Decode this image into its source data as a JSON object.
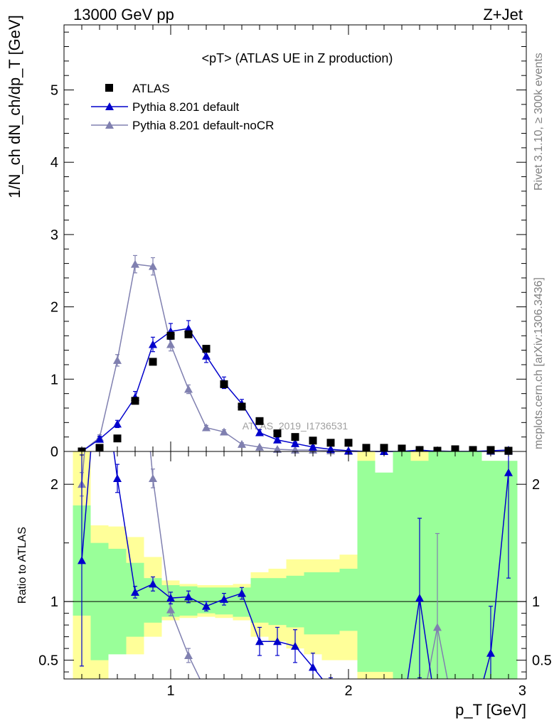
{
  "header": {
    "left": "13000 GeV pp",
    "right": "Z+Jet"
  },
  "side_text": {
    "rivet": "Rivet 3.1.10, ≥ 300k events",
    "mcplots": "mcplots.cern.ch [arXiv:1306.3436]"
  },
  "colors": {
    "atlas": "#000000",
    "default": "#0000cc",
    "nocr": "#8080b0",
    "band_green": "#99ff99",
    "band_yellow": "#ffff99"
  },
  "chart_data": {
    "type": "line",
    "title": "<pT> (ATLAS UE in Z production)",
    "watermark": "ATLAS_2019_I1736531",
    "xlabel": "p_T [GeV]",
    "ylabel": "1/N_ch dN_ch/dp_T [GeV]",
    "ratio_ylabel": "Ratio to ATLAS",
    "xlim": [
      0.4,
      3.0
    ],
    "ylim": [
      0,
      5.9
    ],
    "ratio_ylim": [
      0.34,
      2.28
    ],
    "legend_position": "top-left",
    "main_yticks": [
      0,
      1,
      2,
      3,
      4,
      5
    ],
    "main_ytick_labels": [
      "0",
      "1",
      "2",
      "3",
      "4",
      "5"
    ],
    "ratio_yticks": [
      0.5,
      1,
      2
    ],
    "ratio_ytick_labels": [
      "0.5",
      "1",
      "2"
    ],
    "xticks": [
      1,
      2,
      3
    ],
    "xtick_labels": [
      "1",
      "2",
      "3"
    ],
    "legend": [
      "ATLAS",
      "Pythia 8.201 default",
      "Pythia 8.201 default-noCR"
    ],
    "x": [
      0.5,
      0.6,
      0.7,
      0.8,
      0.9,
      1.0,
      1.1,
      1.2,
      1.3,
      1.4,
      1.5,
      1.6,
      1.7,
      1.8,
      1.9,
      2.0,
      2.1,
      2.2,
      2.3,
      2.4,
      2.5,
      2.6,
      2.7,
      2.8,
      2.9
    ],
    "series": [
      {
        "name": "ATLAS",
        "values": [
          0.0,
          0.05,
          0.18,
          0.7,
          1.24,
          1.6,
          1.62,
          1.42,
          0.93,
          0.62,
          0.42,
          0.25,
          0.2,
          0.15,
          0.12,
          0.12,
          0.05,
          0.05,
          0.04,
          0.02,
          0.01,
          0.03,
          0.02,
          0.02,
          0.01
        ]
      },
      {
        "name": "Pythia 8.201 default",
        "values": [
          0.0,
          0.17,
          0.38,
          0.75,
          1.48,
          1.66,
          1.7,
          1.32,
          0.95,
          0.66,
          0.26,
          0.16,
          0.11,
          0.06,
          0.03,
          0.01,
          0.0,
          0.0,
          0.0,
          0.02,
          0.0,
          0.0,
          0.0,
          0.01,
          0.02
        ],
        "errors": [
          0.02,
          0.04,
          0.05,
          0.08,
          0.1,
          0.11,
          0.11,
          0.09,
          0.08,
          0.06,
          0.04,
          0.03,
          0.02,
          0.02,
          0.01,
          0.01,
          0.01,
          0.01,
          0.01,
          0.01,
          0.01,
          0.01,
          0.01,
          0.01,
          0.01
        ],
        "ratio": [
          1.35,
          3.2,
          2.05,
          1.08,
          1.15,
          1.03,
          1.04,
          0.96,
          1.02,
          1.07,
          0.66,
          0.66,
          0.62,
          0.44,
          0.25,
          0.1,
          0.0,
          0.0,
          0.0,
          1.03,
          0.0,
          0.0,
          0.0,
          0.56,
          2.1
        ],
        "ratio_errors": [
          0.9,
          0.5,
          0.12,
          0.05,
          0.06,
          0.05,
          0.05,
          0.04,
          0.05,
          0.05,
          0.12,
          0.12,
          0.14,
          0.12,
          0.1,
          0.08,
          0.0,
          0.0,
          0.0,
          0.68,
          0.0,
          0.0,
          0.0,
          0.4,
          0.9
        ]
      },
      {
        "name": "Pythia 8.201 default-noCR",
        "values": [
          0.0,
          0.19,
          1.26,
          2.59,
          2.56,
          1.48,
          0.86,
          0.33,
          0.27,
          0.1,
          0.06,
          0.03,
          0.02,
          0.02,
          0.01,
          0.0,
          0.0,
          0.0,
          0.0,
          0.0,
          0.01,
          0.0,
          0.0,
          0.0,
          0.0
        ],
        "errors": [
          0.02,
          0.04,
          0.08,
          0.12,
          0.12,
          0.09,
          0.06,
          0.03,
          0.03,
          0.02,
          0.01,
          0.01,
          0.01,
          0.01,
          0.01,
          0.0,
          0.0,
          0.0,
          0.0,
          0.0,
          0.01,
          0.0,
          0.0,
          0.0,
          0.0
        ],
        "ratio": [
          2.0,
          3.8,
          7.0,
          3.7,
          2.05,
          0.93,
          0.54,
          0.23,
          0.29,
          0.16,
          0.14,
          0.12,
          0.1,
          0.13,
          0.08,
          0.0,
          0.0,
          0.0,
          0.0,
          0.0,
          0.78,
          0.0,
          0.0,
          0.0,
          0.0
        ],
        "ratio_errors": [
          0.1,
          0.2,
          0.3,
          0.2,
          0.08,
          0.05,
          0.06,
          0.03,
          0.04,
          0.03,
          0.03,
          0.03,
          0.03,
          0.03,
          0.03,
          0.0,
          0.0,
          0.0,
          0.0,
          0.0,
          0.8,
          0.0,
          0.0,
          0.0,
          0.0
        ]
      }
    ],
    "band_green": [
      [
        0.88,
        1.82
      ],
      [
        0.5,
        1.5
      ],
      [
        0.55,
        1.45
      ],
      [
        0.7,
        1.33
      ],
      [
        0.82,
        1.2
      ],
      [
        0.87,
        1.14
      ],
      [
        0.88,
        1.13
      ],
      [
        0.9,
        1.12
      ],
      [
        0.89,
        1.12
      ],
      [
        0.87,
        1.12
      ],
      [
        0.82,
        1.2
      ],
      [
        0.8,
        1.2
      ],
      [
        0.78,
        1.22
      ],
      [
        0.72,
        1.25
      ],
      [
        0.72,
        1.25
      ],
      [
        0.75,
        1.28
      ],
      [
        0.4,
        2.2
      ],
      [
        0.4,
        2.1
      ],
      [
        0.3,
        2.3
      ],
      [
        0.3,
        2.2
      ],
      [
        0.2,
        2.4
      ],
      [
        0.2,
        2.3
      ],
      [
        0.2,
        2.4
      ],
      [
        0.3,
        2.2
      ],
      [
        0.3,
        2.2
      ]
    ],
    "band_yellow": [
      [
        0.34,
        2.4
      ],
      [
        0.34,
        1.65
      ],
      [
        0.72,
        1.64
      ],
      [
        0.55,
        1.55
      ],
      [
        0.7,
        1.38
      ],
      [
        0.84,
        1.18
      ],
      [
        0.86,
        1.15
      ],
      [
        0.87,
        1.14
      ],
      [
        0.86,
        1.14
      ],
      [
        0.84,
        1.15
      ],
      [
        0.7,
        1.25
      ],
      [
        0.66,
        1.28
      ],
      [
        0.6,
        1.36
      ],
      [
        0.55,
        1.36
      ],
      [
        0.5,
        1.36
      ],
      [
        0.5,
        1.4
      ],
      [
        0.34,
        2.35
      ],
      [
        0.34,
        1.95
      ],
      [
        0.34,
        2.05
      ],
      [
        0.34,
        2.4
      ],
      [
        0.34,
        2.4
      ],
      [
        0.34,
        2.4
      ],
      [
        0.34,
        2.4
      ],
      [
        0.34,
        2.2
      ],
      [
        0.34,
        2.1
      ]
    ]
  }
}
